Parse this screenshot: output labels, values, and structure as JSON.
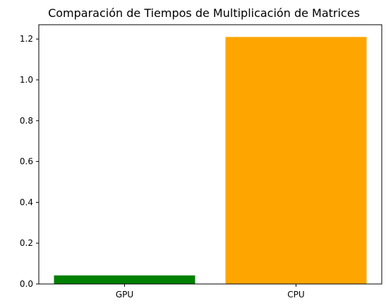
{
  "chart_data": {
    "type": "bar",
    "title": "Comparación de Tiempos de Multiplicación de Matrices",
    "xlabel": "",
    "ylabel": "",
    "categories": [
      "GPU",
      "CPU"
    ],
    "values": [
      0.042,
      1.21
    ],
    "colors": [
      "#008000",
      "#FFA500"
    ],
    "ylim": [
      0,
      1.27
    ],
    "yticks": [
      0.0,
      0.2,
      0.4,
      0.6,
      0.8,
      1.0,
      1.2
    ],
    "ytick_labels": [
      "0.0",
      "0.2",
      "0.4",
      "0.6",
      "0.8",
      "1.0",
      "1.2"
    ],
    "grid": false,
    "legend": "none"
  }
}
